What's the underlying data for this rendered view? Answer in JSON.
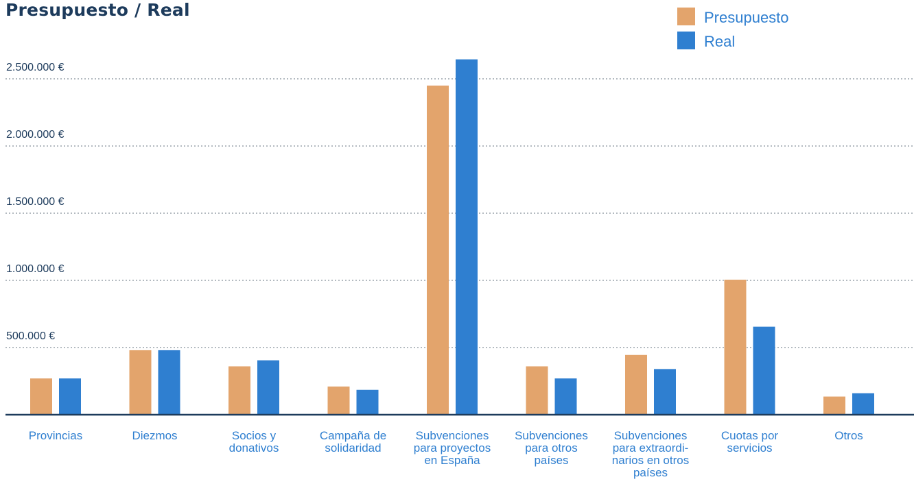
{
  "chart_data": {
    "type": "bar",
    "title": "Presupuesto / Real",
    "xlabel": "",
    "ylabel": "",
    "ylim": [
      0,
      2500000
    ],
    "yticks": [
      500000,
      1000000,
      1500000,
      2000000,
      2500000
    ],
    "ytick_labels": [
      "500.000 €",
      "1.000.000 €",
      "1.500.000 €",
      "2.000.000 €",
      "2.500.000 €"
    ],
    "grid": "horizontal-dotted",
    "legend_position": "top-right",
    "categories": [
      "Provincias",
      "Diezmos",
      "Socios y donativos",
      "Campaña de solidaridad",
      "Subvenciones para proyectos en España",
      "Subvenciones para otros países",
      "Subvenciones para extraordinarios en otros países",
      "Cuotas por servicios",
      "Otros"
    ],
    "category_label_lines": [
      [
        "Provincias"
      ],
      [
        "Diezmos"
      ],
      [
        "Socios y",
        "donativos"
      ],
      [
        "Campaña de",
        "solidaridad"
      ],
      [
        "Subvenciones",
        "para proyectos",
        "en España"
      ],
      [
        "Subvenciones",
        "para otros",
        "países"
      ],
      [
        "Subvenciones",
        "para extraordi-",
        "narios en otros",
        "países"
      ],
      [
        "Cuotas por",
        "servicios"
      ],
      [
        "Otros"
      ]
    ],
    "series": [
      {
        "name": "Presupuesto",
        "color": "#e3a46c",
        "values": [
          270000,
          480000,
          360000,
          210000,
          2450000,
          360000,
          445000,
          1005000,
          135000
        ]
      },
      {
        "name": "Real",
        "color": "#2f7fd0",
        "values": [
          270000,
          480000,
          405000,
          185000,
          2645000,
          270000,
          340000,
          655000,
          160000
        ]
      }
    ]
  }
}
